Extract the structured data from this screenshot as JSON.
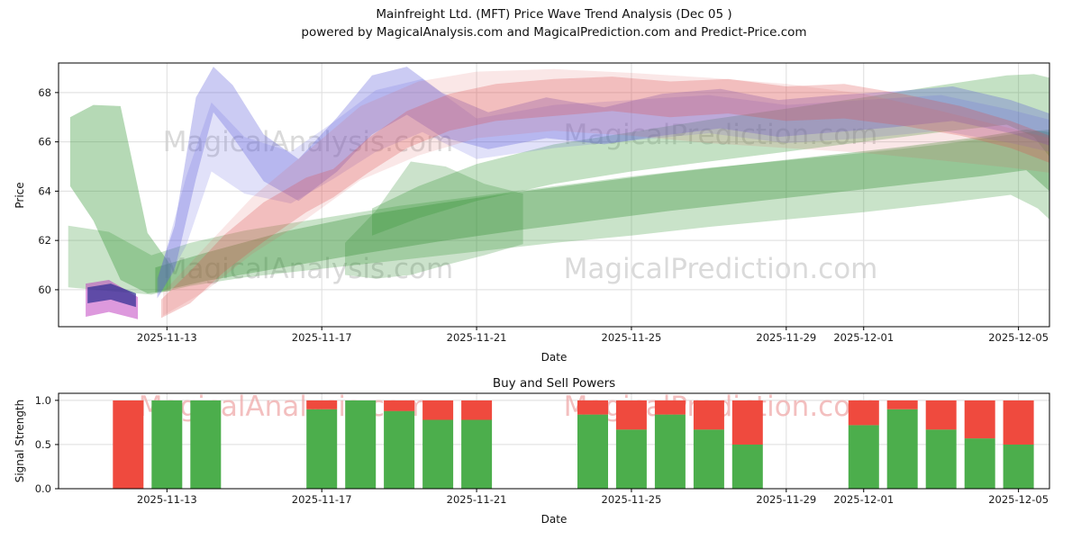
{
  "title": {
    "line1": "Mainfreight Ltd. (MFT) Price Wave Trend Analysis (Dec 05 )",
    "line2": "powered by MagicalAnalysis.com and MagicalPrediction.com and Predict-Price.com"
  },
  "watermark_texts": {
    "analysis": "MagicalAnalysis.com",
    "prediction": "MagicalPrediction.com"
  },
  "price_chart": {
    "ylabel": "Price",
    "xlabel": "Date"
  },
  "power_chart": {
    "title": "Buy and Sell Powers",
    "ylabel": "Signal Strength",
    "xlabel": "Date"
  },
  "colors": {
    "grid": "#dedede",
    "spine": "#000000",
    "tick_label": "#1a1a1a",
    "watermark_gray": "#cdcdcd",
    "watermark_pink": "#efa9a9",
    "buy_green": "#4cae4c",
    "sell_red": "#ef4a3e"
  },
  "chart_data": [
    {
      "type": "area",
      "title": "Mainfreight Ltd. (MFT) Price Wave Trend Analysis (Dec 05 )",
      "subtitle": "powered by MagicalAnalysis.com and MagicalPrediction.com and Predict-Price.com",
      "xlabel": "Date",
      "ylabel": "Price",
      "x_epoch": "2025-11-10",
      "x_domain_days": [
        0.2,
        25.8
      ],
      "ylim": [
        58.5,
        69.2
      ],
      "yticks": [
        60,
        62,
        64,
        66,
        68
      ],
      "xticks": [
        "2025-11-13",
        "2025-11-17",
        "2025-11-21",
        "2025-11-25",
        "2025-11-29",
        "2025-12-01",
        "2025-12-05"
      ],
      "grid": true,
      "legend": "none",
      "bands": [
        {
          "name": "green-left-wedge",
          "color": "#3d9c3d",
          "opacity": 0.38,
          "points": [
            [
              0.5,
              64.2,
              67.0
            ],
            [
              1.1,
              62.8,
              67.5
            ],
            [
              1.8,
              60.4,
              67.45
            ],
            [
              2.5,
              59.85,
              62.3
            ],
            [
              3.1,
              59.95,
              61.0
            ]
          ]
        },
        {
          "name": "green-wide",
          "color": "#3d9c3d",
          "opacity": 0.28,
          "points": [
            [
              0.45,
              60.1,
              62.6
            ],
            [
              1.5,
              59.95,
              62.35
            ],
            [
              2.6,
              59.8,
              61.4
            ],
            [
              3.6,
              60.15,
              61.9
            ],
            [
              5,
              60.5,
              62.4
            ],
            [
              7,
              60.85,
              62.9
            ],
            [
              9,
              61.2,
              63.4
            ],
            [
              11,
              61.55,
              63.8
            ],
            [
              13,
              61.9,
              64.2
            ],
            [
              15,
              62.2,
              64.6
            ],
            [
              17,
              62.55,
              64.95
            ],
            [
              19,
              62.85,
              65.25
            ],
            [
              21,
              63.15,
              65.55
            ],
            [
              23,
              63.5,
              65.9
            ],
            [
              24.8,
              63.85,
              66.3
            ],
            [
              25.5,
              63.3,
              66.45
            ],
            [
              25.8,
              62.85,
              66.5
            ]
          ]
        },
        {
          "name": "green-mid",
          "color": "#2e8b2e",
          "opacity": 0.33,
          "points": [
            [
              2.7,
              59.9,
              60.9
            ],
            [
              4,
              60.35,
              61.5
            ],
            [
              6,
              60.9,
              62.35
            ],
            [
              8,
              61.45,
              63.0
            ],
            [
              10,
              61.95,
              63.5
            ],
            [
              12,
              62.4,
              63.95
            ],
            [
              14,
              62.8,
              64.35
            ],
            [
              16,
              63.2,
              64.75
            ],
            [
              18,
              63.55,
              65.1
            ],
            [
              20,
              63.9,
              65.45
            ],
            [
              22,
              64.25,
              65.8
            ],
            [
              24,
              64.6,
              66.2
            ],
            [
              25.2,
              64.85,
              66.5
            ],
            [
              25.8,
              64.0,
              66.4
            ]
          ]
        },
        {
          "name": "green-upper",
          "color": "#3d9c3d",
          "opacity": 0.3,
          "points": [
            [
              8.3,
              62.2,
              63.3
            ],
            [
              9.5,
              62.9,
              64.2
            ],
            [
              11,
              63.6,
              65.1
            ],
            [
              13,
              64.3,
              65.9
            ],
            [
              15,
              64.8,
              66.4
            ],
            [
              17,
              65.2,
              66.9
            ],
            [
              19,
              65.6,
              67.35
            ],
            [
              21,
              66.0,
              67.8
            ],
            [
              23,
              66.4,
              68.3
            ],
            [
              24.7,
              66.7,
              68.7
            ],
            [
              25.4,
              66.2,
              68.75
            ],
            [
              25.8,
              65.4,
              68.6
            ]
          ]
        },
        {
          "name": "green-bulge",
          "color": "#2e8b2e",
          "opacity": 0.25,
          "points": [
            [
              7.6,
              60.6,
              61.9
            ],
            [
              8.4,
              60.45,
              63.2
            ],
            [
              9.3,
              60.6,
              65.2
            ],
            [
              10.2,
              61.0,
              65.0
            ],
            [
              11.2,
              61.4,
              64.3
            ],
            [
              12.2,
              61.85,
              63.9
            ]
          ]
        },
        {
          "name": "blue-main",
          "color": "#5353d6",
          "opacity": 0.3,
          "points": [
            [
              2.75,
              59.65,
              60.45
            ],
            [
              3.2,
              60.8,
              62.6
            ],
            [
              3.75,
              64.5,
              67.8
            ],
            [
              4.2,
              67.2,
              69.05
            ],
            [
              4.7,
              66.2,
              68.3
            ],
            [
              5.5,
              64.4,
              66.3
            ],
            [
              6.4,
              63.6,
              65.3
            ],
            [
              7.4,
              64.8,
              67.0
            ],
            [
              8.3,
              66.3,
              68.7
            ],
            [
              9.2,
              67.1,
              69.05
            ],
            [
              10.1,
              66.2,
              68.0
            ],
            [
              11.3,
              65.7,
              67.2
            ],
            [
              12.8,
              66.15,
              67.8
            ],
            [
              14.3,
              65.9,
              67.4
            ],
            [
              15.8,
              66.25,
              67.95
            ],
            [
              17.3,
              66.55,
              68.15
            ],
            [
              18.8,
              66.2,
              67.7
            ],
            [
              20.3,
              66.4,
              67.9
            ],
            [
              21.8,
              66.6,
              68.05
            ],
            [
              23.3,
              66.85,
              68.25
            ],
            [
              24.8,
              66.35,
              67.7
            ],
            [
              25.8,
              65.85,
              67.15
            ]
          ]
        },
        {
          "name": "blue-soft",
          "color": "#6a6ae0",
          "opacity": 0.2,
          "points": [
            [
              2.8,
              59.75,
              60.6
            ],
            [
              3.5,
              61.8,
              64.6
            ],
            [
              4.15,
              64.8,
              67.6
            ],
            [
              5.0,
              63.9,
              66.2
            ],
            [
              6.2,
              63.5,
              65.6
            ],
            [
              7.3,
              64.5,
              66.8
            ],
            [
              8.4,
              65.6,
              68.1
            ],
            [
              9.6,
              66.4,
              68.55
            ],
            [
              11,
              65.3,
              66.95
            ],
            [
              13,
              65.75,
              67.5
            ],
            [
              15,
              66.05,
              67.7
            ],
            [
              17,
              66.35,
              67.9
            ],
            [
              19,
              65.95,
              67.5
            ],
            [
              21,
              66.15,
              67.7
            ],
            [
              23,
              66.45,
              67.9
            ],
            [
              24.8,
              65.95,
              67.3
            ],
            [
              25.8,
              65.6,
              66.9
            ]
          ]
        },
        {
          "name": "red-main",
          "color": "#dd4444",
          "opacity": 0.26,
          "points": [
            [
              2.85,
              58.85,
              59.6
            ],
            [
              3.6,
              59.45,
              60.75
            ],
            [
              4.5,
              60.75,
              62.25
            ],
            [
              5.5,
              61.95,
              63.55
            ],
            [
              6.6,
              63.15,
              64.55
            ],
            [
              7.3,
              63.75,
              64.9
            ],
            [
              8.2,
              64.75,
              66.15
            ],
            [
              9.2,
              65.75,
              67.25
            ],
            [
              10.3,
              66.45,
              67.95
            ],
            [
              11.5,
              66.85,
              68.35
            ],
            [
              13,
              67.05,
              68.55
            ],
            [
              14.5,
              67.25,
              68.65
            ],
            [
              16,
              67.0,
              68.45
            ],
            [
              17.5,
              67.15,
              68.55
            ],
            [
              19,
              66.85,
              68.25
            ],
            [
              20.5,
              66.95,
              68.35
            ],
            [
              22,
              66.65,
              67.95
            ],
            [
              23.5,
              66.25,
              67.45
            ],
            [
              24.8,
              65.75,
              66.85
            ],
            [
              25.8,
              65.15,
              66.25
            ]
          ]
        },
        {
          "name": "red-soft",
          "color": "#e06060",
          "opacity": 0.15,
          "points": [
            [
              2.9,
              58.95,
              59.9
            ],
            [
              4.0,
              59.95,
              61.75
            ],
            [
              5.2,
              61.45,
              63.75
            ],
            [
              6.5,
              62.75,
              65.45
            ],
            [
              8,
              64.45,
              67.45
            ],
            [
              9.5,
              65.45,
              68.45
            ],
            [
              11,
              66.15,
              68.85
            ],
            [
              13,
              66.45,
              68.95
            ],
            [
              15,
              66.25,
              68.8
            ],
            [
              17,
              65.95,
              68.6
            ],
            [
              19,
              65.75,
              68.35
            ],
            [
              21,
              65.55,
              67.95
            ],
            [
              23,
              65.25,
              67.25
            ],
            [
              24.8,
              64.95,
              66.55
            ],
            [
              25.8,
              64.75,
              66.15
            ]
          ]
        },
        {
          "name": "magenta-blob",
          "color": "#bb33bb",
          "opacity": 0.5,
          "points": [
            [
              0.9,
              58.9,
              60.25
            ],
            [
              1.5,
              59.1,
              60.4
            ],
            [
              2.25,
              58.8,
              59.7
            ]
          ]
        },
        {
          "name": "navy-blob",
          "color": "#2a2a90",
          "opacity": 0.7,
          "points": [
            [
              0.95,
              59.45,
              60.1
            ],
            [
              1.55,
              59.6,
              60.25
            ],
            [
              2.2,
              59.3,
              59.85
            ]
          ]
        }
      ]
    },
    {
      "type": "bar",
      "title": "Buy and Sell Powers",
      "xlabel": "Date",
      "ylabel": "Signal Strength",
      "ylim": [
        0,
        1.08
      ],
      "yticks": [
        0.0,
        0.5,
        1.0
      ],
      "xticks": [
        "2025-11-13",
        "2025-11-17",
        "2025-11-21",
        "2025-11-25",
        "2025-11-29",
        "2025-12-01",
        "2025-12-05"
      ],
      "stacked": true,
      "grid": true,
      "dates": [
        "2025-11-12",
        "2025-11-13",
        "2025-11-14",
        "2025-11-17",
        "2025-11-18",
        "2025-11-19",
        "2025-11-20",
        "2025-11-21",
        "2025-11-24",
        "2025-11-25",
        "2025-11-26",
        "2025-11-27",
        "2025-11-28",
        "2025-12-01",
        "2025-12-02",
        "2025-12-03",
        "2025-12-04",
        "2025-12-05"
      ],
      "series": [
        {
          "name": "Buy",
          "color": "#4cae4c",
          "values": [
            0.0,
            1.0,
            1.0,
            0.9,
            1.0,
            0.88,
            0.78,
            0.78,
            0.84,
            0.67,
            0.84,
            0.67,
            0.5,
            0.72,
            0.9,
            0.67,
            0.57,
            0.5
          ]
        },
        {
          "name": "Sell",
          "color": "#ef4a3e",
          "values": [
            1.0,
            0.0,
            0.0,
            0.1,
            0.0,
            0.12,
            0.22,
            0.22,
            0.16,
            0.33,
            0.16,
            0.33,
            0.5,
            0.28,
            0.1,
            0.33,
            0.43,
            0.5
          ]
        }
      ]
    }
  ]
}
